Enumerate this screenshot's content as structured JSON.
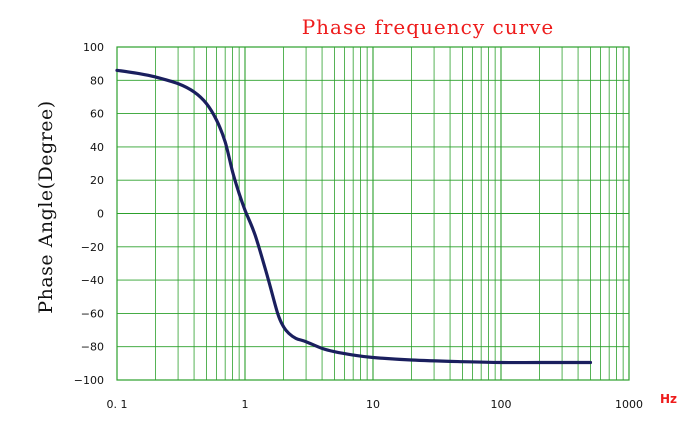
{
  "chart_data": {
    "type": "line",
    "title": "Phase frequency curve",
    "ylabel": "Phase Angle(Degree)",
    "xlabel": "",
    "x_unit": "Hz",
    "x_scale": "log",
    "xlim": [
      0.1,
      1000
    ],
    "ylim": [
      -100,
      100
    ],
    "x_ticks": [
      0.1,
      1,
      10,
      100,
      1000
    ],
    "x_tick_labels": [
      "0. 1",
      "1",
      "10",
      "100",
      "1000"
    ],
    "y_ticks": [
      100,
      80,
      60,
      40,
      20,
      0,
      -20,
      -40,
      -60,
      -80,
      -100
    ],
    "y_tick_labels": [
      "100",
      "80",
      "60",
      "40",
      "20",
      "0",
      "−20",
      "−40",
      "−60",
      "−80",
      "−100"
    ],
    "grid": true,
    "colors": {
      "title": "#ee1c1c",
      "grid": "#2ca02c",
      "line": "#1a1f5e",
      "unit": "#ee1c1c",
      "axis_text": "#111111"
    },
    "series": [
      {
        "x": [
          0.1,
          0.15,
          0.2,
          0.3,
          0.4,
          0.5,
          0.6,
          0.7,
          0.8,
          0.9,
          1.0,
          1.2,
          1.5,
          1.8,
          2.0,
          2.2,
          2.5,
          3.0,
          4.0,
          5.0,
          7.0,
          10,
          20,
          50,
          100,
          200,
          500
        ],
        "y": [
          86,
          84,
          82,
          78,
          73,
          66,
          56,
          43,
          25,
          12,
          2,
          -13,
          -38,
          -60,
          -68,
          -72,
          -75,
          -77,
          -81,
          -83,
          -85,
          -86.5,
          -88,
          -89,
          -89.5,
          -89.5,
          -89.5
        ]
      }
    ]
  }
}
